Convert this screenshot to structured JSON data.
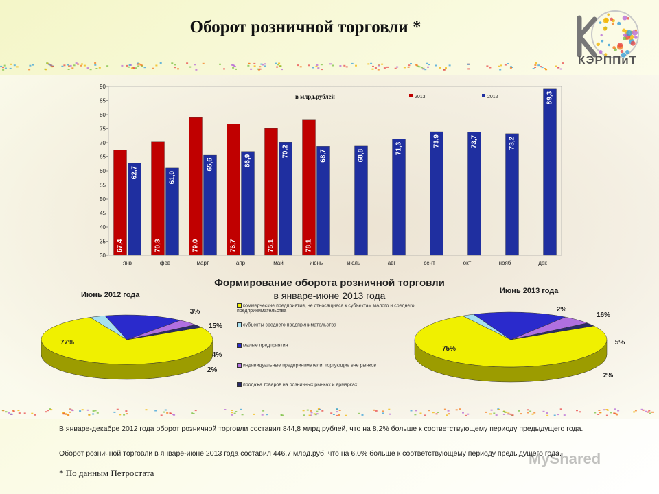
{
  "header": {
    "title": "Оборот розничной торговли *",
    "logo_text": "КЭРППиТ"
  },
  "chart_data": [
    {
      "type": "bar",
      "unit_label": "в млрд.рублей",
      "categories": [
        "янв",
        "фев",
        "март",
        "апр",
        "май",
        "июнь",
        "июль",
        "авг",
        "сент",
        "окт",
        "нояб",
        "дек"
      ],
      "series": [
        {
          "name": "2013",
          "color": "#c00000",
          "values": [
            67.4,
            70.3,
            79.0,
            76.7,
            75.1,
            78.1,
            null,
            null,
            null,
            null,
            null,
            null
          ],
          "labels": [
            "67,4",
            "70,3",
            "79,0",
            "76,7",
            "75,1",
            "78,1",
            "",
            "",
            "",
            "",
            "",
            ""
          ]
        },
        {
          "name": "2012",
          "color": "#1f2fa0",
          "values": [
            62.7,
            61.0,
            65.6,
            66.9,
            70.2,
            68.7,
            68.8,
            71.3,
            73.9,
            73.7,
            73.2,
            89.3
          ],
          "labels": [
            "62,7",
            "61,0",
            "65,6",
            "66,9",
            "70,2",
            "68,7",
            "68,8",
            "71,3",
            "73,9",
            "73,7",
            "73,2",
            "89,3"
          ]
        }
      ],
      "ylim": [
        30,
        90
      ],
      "yticks": [
        "30",
        "35",
        "40",
        "45",
        "50",
        "55",
        "60",
        "65",
        "70",
        "75",
        "80",
        "85",
        "90"
      ],
      "legend_position": "top"
    },
    {
      "type": "pie",
      "title": "Июнь 2012 года",
      "slices": [
        {
          "category": "коммерческие предприятия, не относящиеся к субъектам малого и среднего предпринимательства",
          "value": 77,
          "label": "77%",
          "color": "#f0f000"
        },
        {
          "category": "субъекты среднего предпринимательства",
          "value": 3,
          "label": "3%",
          "color": "#a6e0f0"
        },
        {
          "category": "малые предприятия",
          "value": 15,
          "label": "15%",
          "color": "#2a2acc"
        },
        {
          "category": "индивидуальные предприниматели, торгующие вне рынков",
          "value": 4,
          "label": "4%",
          "color": "#b070e0"
        },
        {
          "category": "продажа товаров на розничных рынках и ярмарках",
          "value": 2,
          "label": "2%",
          "color": "#2a2a6a"
        }
      ]
    },
    {
      "type": "pie",
      "title": "Июнь 2013 года",
      "slices": [
        {
          "category": "коммерческие предприятия, не относящиеся к субъектам малого и среднего предпринимательства",
          "value": 75,
          "label": "75%",
          "color": "#f0f000"
        },
        {
          "category": "субъекты среднего предпринимательства",
          "value": 2,
          "label": "2%",
          "color": "#a6e0f0"
        },
        {
          "category": "малые предприятия",
          "value": 16,
          "label": "16%",
          "color": "#2a2acc"
        },
        {
          "category": "индивидуальные предприниматели, торгующие вне рынков",
          "value": 5,
          "label": "5%",
          "color": "#b070e0"
        },
        {
          "category": "продажа товаров на розничных рынках и ярмарках",
          "value": 2,
          "label": "2%",
          "color": "#2a2a6a"
        }
      ]
    }
  ],
  "section": {
    "title": "Формирование оборота розничной торговли",
    "subtitle": "в январе-июне 2013 года"
  },
  "legend": [
    "коммерческие предприятия, не относящиеся к субъектам малого и среднего предпринимательства",
    "субъекты среднего предпринимательства",
    "малые предприятия",
    "индивидуальные предприниматели, торгующие вне рынков",
    "продажа товаров на розничных рынках и ярмарках"
  ],
  "text": {
    "para1": "В январе-декабре 2012 года оборот розничной торговли составил 844,8 млрд.рублей, что на 8,2% больше к соответствующему периоду предыдущего года.",
    "para2": "Оборот розничной торговли в январе-июне 2013 года составил 446,7 млрд.руб, что на 6,0% больше к соответствующему периоду предыдущего года.",
    "footnote": "* По данным Петростата",
    "watermark": "MyShared"
  }
}
